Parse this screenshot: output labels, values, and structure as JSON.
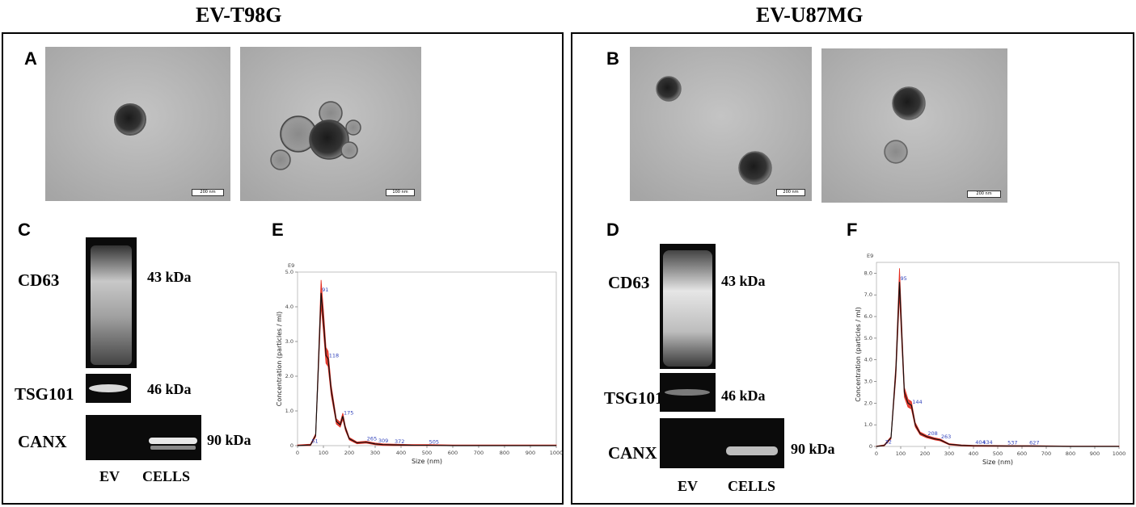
{
  "titles": {
    "left": "EV-T98G",
    "right": "EV-U87MG"
  },
  "panel_letters": {
    "A": "A",
    "B": "B",
    "C": "C",
    "D": "D",
    "E": "E",
    "F": "F"
  },
  "em_scalebars": [
    "200 nm",
    "100 nm",
    "200 nm",
    "200 nm"
  ],
  "blots": {
    "left": {
      "cd63": "CD63",
      "cd63_kda": "43 kDa",
      "tsg101": "TSG101",
      "tsg101_kda": "46 kDa",
      "canx": "CANX",
      "canx_kda": "90 kDa",
      "lane_ev": "EV",
      "lane_cells": "CELLS"
    },
    "right": {
      "cd63": "CD63",
      "cd63_kda": "43 kDa",
      "tsg101": "TSG101",
      "tsg101_kda": "46 kDa",
      "canx": "CANX",
      "canx_kda": "90 kDa",
      "lane_ev": "EV",
      "lane_cells": "CELLS"
    }
  },
  "chart_data": [
    {
      "type": "line",
      "panel": "E",
      "xlabel": "Size (nm)",
      "ylabel": "Concentration (particles / ml)",
      "y_multiplier_label": "E9",
      "xlim": [
        0,
        1000
      ],
      "ylim": [
        0,
        5.0
      ],
      "x_ticks": [
        0,
        100,
        200,
        300,
        400,
        500,
        600,
        700,
        800,
        900,
        1000
      ],
      "y_ticks": [
        "0",
        "1.0",
        "2.0",
        "3.0",
        "4.0",
        "5.0"
      ],
      "series": [
        {
          "x": [
            0,
            50,
            70,
            80,
            91,
            100,
            110,
            118,
            130,
            150,
            165,
            175,
            185,
            200,
            230,
            265,
            300,
            330,
            372,
            450,
            505,
            600,
            800,
            1000
          ],
          "values": [
            0,
            0.02,
            0.3,
            2.2,
            4.4,
            3.6,
            2.6,
            2.5,
            1.6,
            0.7,
            0.6,
            0.85,
            0.5,
            0.2,
            0.08,
            0.1,
            0.05,
            0.03,
            0.02,
            0.01,
            0.01,
            0.0,
            0.0,
            0.0
          ]
        }
      ],
      "peak_labels": [
        {
          "x": 51,
          "text": "51"
        },
        {
          "x": 91,
          "text": "91"
        },
        {
          "x": 118,
          "text": "118"
        },
        {
          "x": 175,
          "text": "175"
        },
        {
          "x": 265,
          "text": "265"
        },
        {
          "x": 309,
          "text": "309"
        },
        {
          "x": 372,
          "text": "372"
        },
        {
          "x": 505,
          "text": "505"
        }
      ]
    },
    {
      "type": "line",
      "panel": "F",
      "xlabel": "Size (nm)",
      "ylabel": "Concentration (particles / ml)",
      "y_multiplier_label": "E9",
      "xlim": [
        0,
        1000
      ],
      "ylim": [
        0,
        8.5
      ],
      "x_ticks": [
        0,
        100,
        200,
        300,
        400,
        500,
        600,
        700,
        800,
        900,
        1000
      ],
      "y_ticks": [
        "0",
        "1.0",
        "2.0",
        "3.0",
        "4.0",
        "5.0",
        "6.0",
        "7.0",
        "8.0"
      ],
      "series": [
        {
          "x": [
            0,
            32,
            60,
            80,
            95,
            105,
            115,
            130,
            144,
            160,
            180,
            208,
            240,
            263,
            300,
            350,
            404,
            434,
            537,
            627,
            800,
            1000
          ],
          "values": [
            0,
            0.05,
            0.4,
            3.5,
            7.6,
            5.0,
            2.5,
            2.0,
            1.9,
            1.0,
            0.6,
            0.45,
            0.35,
            0.3,
            0.1,
            0.05,
            0.03,
            0.03,
            0.02,
            0.02,
            0.0,
            0.0
          ]
        }
      ],
      "peak_labels": [
        {
          "x": 32,
          "text": "32"
        },
        {
          "x": 95,
          "text": "95"
        },
        {
          "x": 144,
          "text": "144"
        },
        {
          "x": 208,
          "text": "208"
        },
        {
          "x": 263,
          "text": "263"
        },
        {
          "x": 404,
          "text": "404"
        },
        {
          "x": 434,
          "text": "434"
        },
        {
          "x": 537,
          "text": "537"
        },
        {
          "x": 627,
          "text": "627"
        }
      ]
    }
  ]
}
